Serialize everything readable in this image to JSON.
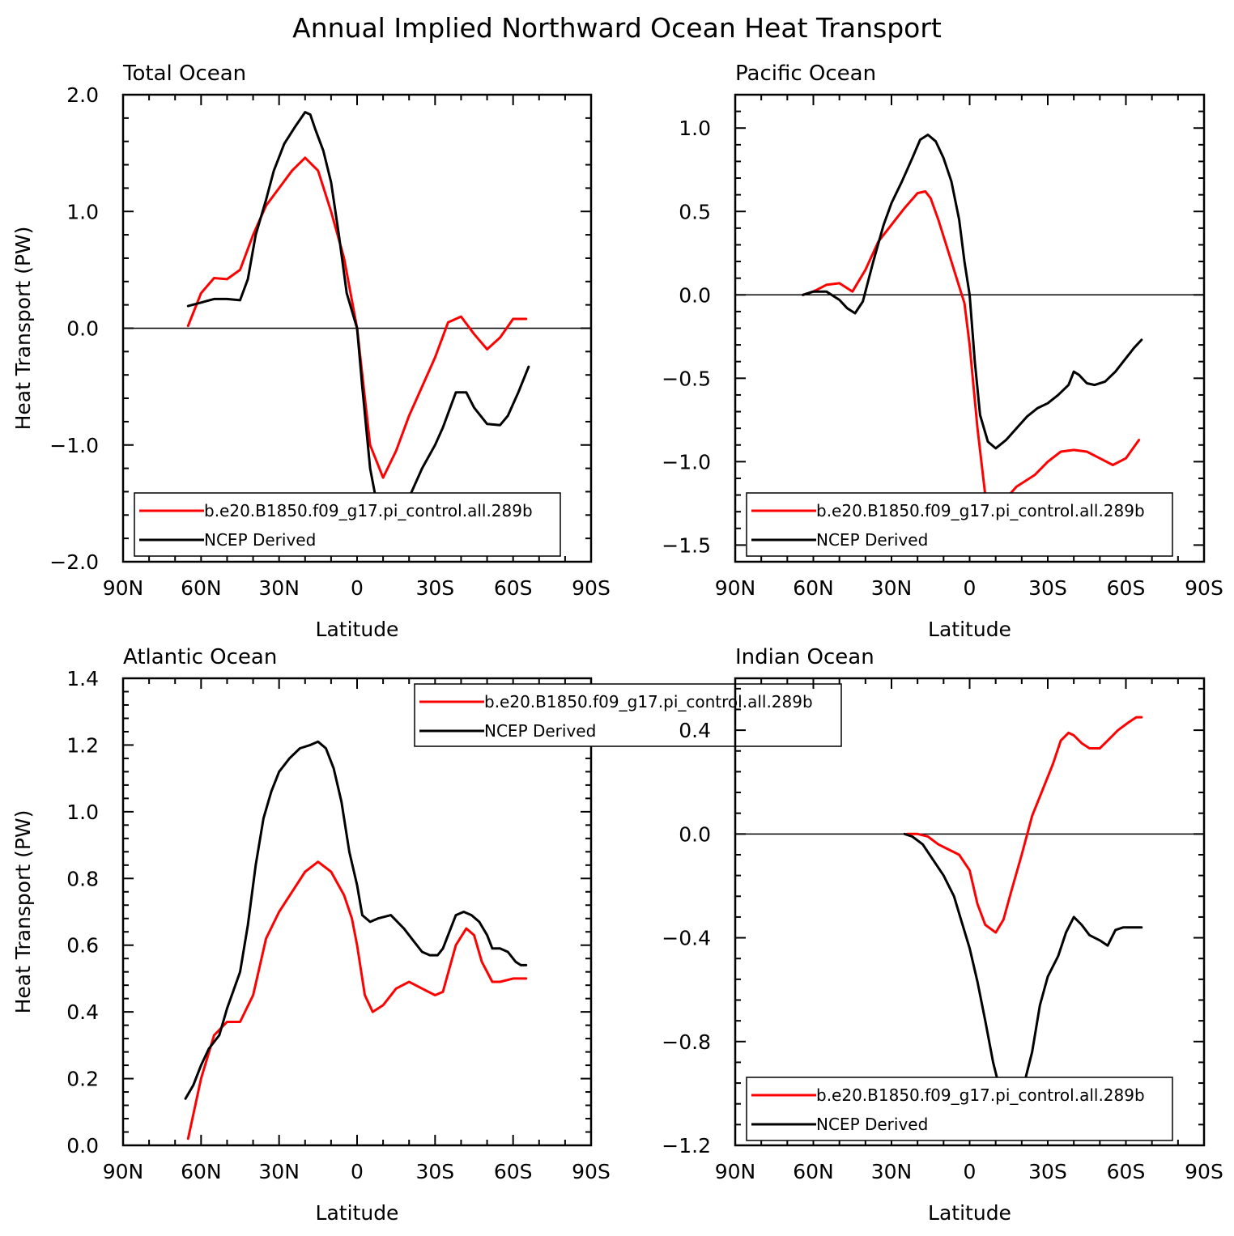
{
  "title": "Annual Implied Northward Ocean Heat Transport",
  "colors": {
    "model": "#ff0000",
    "obs": "#000000"
  },
  "chart_data": [
    {
      "type": "line",
      "title": "Total Ocean",
      "xlabel": "Latitude",
      "ylabel": "Heat Transport (PW)",
      "xlim": [
        90,
        -90
      ],
      "ylim": [
        -2.0,
        2.0
      ],
      "yticks": [
        -2.0,
        -1.0,
        0.0,
        1.0,
        2.0
      ],
      "ytick_labels": [
        "−2.0",
        "−1.0",
        "0.0",
        "1.0",
        "2.0"
      ],
      "xticks": [
        90,
        60,
        30,
        0,
        -30,
        -60,
        -90
      ],
      "xtick_labels": [
        "90N",
        "60N",
        "30N",
        "0",
        "30S",
        "60S",
        "90S"
      ],
      "zero_line": true,
      "legend_position": "bottom-left",
      "series": [
        {
          "name": "b.e20.B1850.f09_g17.pi_control.all.289b",
          "color": "#ff0000",
          "x": [
            65,
            60,
            55,
            50,
            45,
            40,
            35,
            30,
            25,
            20,
            15,
            10,
            5,
            0,
            -5,
            -10,
            -15,
            -20,
            -25,
            -30,
            -35,
            -40,
            -45,
            -50,
            -55,
            -60,
            -65
          ],
          "y": [
            0.02,
            0.3,
            0.43,
            0.42,
            0.5,
            0.8,
            1.05,
            1.2,
            1.35,
            1.46,
            1.35,
            1.0,
            0.6,
            0.0,
            -1.0,
            -1.28,
            -1.05,
            -0.75,
            -0.5,
            -0.25,
            0.05,
            0.1,
            -0.05,
            -0.18,
            -0.08,
            0.08,
            0.08
          ]
        },
        {
          "name": "NCEP Derived",
          "color": "#000000",
          "x": [
            65,
            60,
            55,
            50,
            45,
            42,
            39,
            35,
            32,
            28,
            24,
            20,
            18,
            16,
            13,
            10,
            7,
            4,
            2,
            0,
            -2,
            -5,
            -8,
            -10,
            -13,
            -16,
            -20,
            -25,
            -30,
            -33,
            -38,
            -42,
            -45,
            -50,
            -55,
            -58,
            -62,
            -66
          ],
          "y": [
            0.19,
            0.22,
            0.25,
            0.25,
            0.24,
            0.42,
            0.8,
            1.1,
            1.35,
            1.58,
            1.72,
            1.85,
            1.83,
            1.7,
            1.52,
            1.25,
            0.8,
            0.3,
            0.15,
            0.0,
            -0.5,
            -1.2,
            -1.55,
            -1.65,
            -1.68,
            -1.6,
            -1.45,
            -1.2,
            -1.0,
            -0.85,
            -0.55,
            -0.55,
            -0.68,
            -0.82,
            -0.83,
            -0.75,
            -0.55,
            -0.33
          ]
        }
      ]
    },
    {
      "type": "line",
      "title": "Pacific Ocean",
      "xlabel": "Latitude",
      "ylabel": "",
      "xlim": [
        90,
        -90
      ],
      "ylim": [
        -1.6,
        1.2
      ],
      "yticks": [
        -1.5,
        -1.0,
        -0.5,
        0.0,
        0.5,
        1.0
      ],
      "ytick_labels": [
        "−1.5",
        "−1.0",
        "−0.5",
        "0.0",
        "0.5",
        "1.0"
      ],
      "xticks": [
        90,
        60,
        30,
        0,
        -30,
        -60,
        -90
      ],
      "xtick_labels": [
        "90N",
        "60N",
        "30N",
        "0",
        "30S",
        "60S",
        "90S"
      ],
      "zero_line": true,
      "legend_position": "bottom-left",
      "series": [
        {
          "name": "b.e20.B1850.f09_g17.pi_control.all.289b",
          "color": "#ff0000",
          "x": [
            64,
            60,
            55,
            50,
            45,
            40,
            35,
            30,
            25,
            20,
            17,
            15,
            12,
            8,
            5,
            2,
            0,
            -3,
            -6,
            -9,
            -11,
            -14,
            -18,
            -25,
            -30,
            -35,
            -40,
            -45,
            -50,
            -55,
            -60,
            -65
          ],
          "y": [
            0.0,
            0.02,
            0.06,
            0.07,
            0.02,
            0.15,
            0.32,
            0.42,
            0.52,
            0.61,
            0.62,
            0.58,
            0.45,
            0.25,
            0.1,
            -0.05,
            -0.3,
            -0.8,
            -1.2,
            -1.32,
            -1.3,
            -1.22,
            -1.15,
            -1.08,
            -1.0,
            -0.94,
            -0.93,
            -0.94,
            -0.98,
            -1.02,
            -0.98,
            -0.87
          ]
        },
        {
          "name": "NCEP Derived",
          "color": "#000000",
          "x": [
            64,
            60,
            55,
            50,
            47,
            44,
            41,
            37,
            33,
            30,
            26,
            22,
            19,
            16,
            13,
            10,
            7,
            4,
            2,
            0,
            -2,
            -4,
            -7,
            -10,
            -14,
            -18,
            -22,
            -26,
            -30,
            -34,
            -38,
            -40,
            -42,
            -45,
            -48,
            -52,
            -56,
            -60,
            -63,
            -66
          ],
          "y": [
            0.0,
            0.02,
            0.02,
            -0.03,
            -0.08,
            -0.11,
            -0.04,
            0.2,
            0.42,
            0.55,
            0.68,
            0.82,
            0.93,
            0.96,
            0.92,
            0.82,
            0.68,
            0.45,
            0.2,
            0.0,
            -0.4,
            -0.72,
            -0.88,
            -0.92,
            -0.87,
            -0.8,
            -0.73,
            -0.68,
            -0.65,
            -0.6,
            -0.54,
            -0.46,
            -0.48,
            -0.53,
            -0.54,
            -0.52,
            -0.46,
            -0.38,
            -0.32,
            -0.27
          ]
        }
      ]
    },
    {
      "type": "line",
      "title": "Atlantic Ocean",
      "xlabel": "Latitude",
      "ylabel": "Heat Transport (PW)",
      "xlim": [
        90,
        -90
      ],
      "ylim": [
        0.0,
        1.4
      ],
      "yticks": [
        0.0,
        0.2,
        0.4,
        0.6,
        0.8,
        1.0,
        1.2,
        1.4
      ],
      "ytick_labels": [
        "0.0",
        "0.2",
        "0.4",
        "0.6",
        "0.8",
        "1.0",
        "1.2",
        "1.4"
      ],
      "xticks": [
        90,
        60,
        30,
        0,
        -30,
        -60,
        -90
      ],
      "xtick_labels": [
        "90N",
        "60N",
        "30N",
        "0",
        "30S",
        "60S",
        "90S"
      ],
      "zero_line": false,
      "legend_position": "top-center",
      "series": [
        {
          "name": "b.e20.B1850.f09_g17.pi_control.all.289b",
          "color": "#ff0000",
          "x": [
            65,
            60,
            55,
            50,
            45,
            40,
            35,
            30,
            25,
            20,
            15,
            10,
            5,
            2,
            0,
            -3,
            -6,
            -10,
            -15,
            -20,
            -25,
            -30,
            -33,
            -38,
            -42,
            -45,
            -48,
            -52,
            -55,
            -60,
            -65
          ],
          "y": [
            0.02,
            0.2,
            0.33,
            0.37,
            0.37,
            0.45,
            0.62,
            0.7,
            0.76,
            0.82,
            0.85,
            0.82,
            0.75,
            0.68,
            0.6,
            0.45,
            0.4,
            0.42,
            0.47,
            0.49,
            0.47,
            0.45,
            0.46,
            0.6,
            0.65,
            0.63,
            0.55,
            0.49,
            0.49,
            0.5,
            0.5
          ]
        },
        {
          "name": "NCEP Derived",
          "color": "#000000",
          "x": [
            66,
            63,
            60,
            57,
            53,
            50,
            45,
            42,
            39,
            36,
            33,
            30,
            26,
            22,
            18,
            15,
            12,
            9,
            6,
            3,
            0,
            -2,
            -5,
            -8,
            -13,
            -18,
            -22,
            -25,
            -28,
            -31,
            -33,
            -36,
            -38,
            -41,
            -44,
            -47,
            -50,
            -52,
            -55,
            -58,
            -61,
            -63,
            -65
          ],
          "y": [
            0.14,
            0.18,
            0.24,
            0.29,
            0.33,
            0.41,
            0.52,
            0.66,
            0.84,
            0.98,
            1.06,
            1.12,
            1.16,
            1.19,
            1.2,
            1.21,
            1.19,
            1.13,
            1.03,
            0.88,
            0.78,
            0.69,
            0.67,
            0.68,
            0.69,
            0.65,
            0.61,
            0.58,
            0.57,
            0.57,
            0.59,
            0.65,
            0.69,
            0.7,
            0.69,
            0.67,
            0.63,
            0.59,
            0.59,
            0.58,
            0.55,
            0.54,
            0.54
          ]
        }
      ]
    },
    {
      "type": "line",
      "title": "Indian Ocean",
      "xlabel": "Latitude",
      "ylabel": "",
      "xlim": [
        90,
        -90
      ],
      "ylim": [
        -1.2,
        0.6
      ],
      "yticks": [
        -1.2,
        -0.8,
        -0.4,
        0.0,
        0.4
      ],
      "ytick_labels": [
        "−1.2",
        "−0.8",
        "−0.4",
        "0.0",
        "0.4"
      ],
      "xticks": [
        90,
        60,
        30,
        0,
        -30,
        -60,
        -90
      ],
      "xtick_labels": [
        "90N",
        "60N",
        "30N",
        "0",
        "30S",
        "60S",
        "90S"
      ],
      "zero_line": true,
      "legend_position": "bottom-left",
      "series": [
        {
          "name": "b.e20.B1850.f09_g17.pi_control.all.289b",
          "color": "#ff0000",
          "x": [
            24,
            20,
            16,
            12,
            8,
            4,
            0,
            -3,
            -6,
            -10,
            -13,
            -16,
            -20,
            -24,
            -28,
            -32,
            -35,
            -38,
            -40,
            -43,
            -46,
            -50,
            -53,
            -57,
            -61,
            -64,
            -66
          ],
          "y": [
            0.0,
            0.0,
            -0.01,
            -0.04,
            -0.06,
            -0.08,
            -0.14,
            -0.27,
            -0.35,
            -0.38,
            -0.33,
            -0.22,
            -0.08,
            0.07,
            0.17,
            0.27,
            0.36,
            0.39,
            0.38,
            0.35,
            0.33,
            0.33,
            0.36,
            0.4,
            0.43,
            0.45,
            0.45
          ]
        },
        {
          "name": "NCEP Derived",
          "color": "#000000",
          "x": [
            25,
            22,
            18,
            14,
            10,
            6,
            3,
            0,
            -3,
            -6,
            -9,
            -12,
            -15,
            -18,
            -21,
            -24,
            -27,
            -30,
            -34,
            -37,
            -40,
            -43,
            -46,
            -50,
            -53,
            -56,
            -59,
            -62,
            -65,
            -66
          ],
          "y": [
            0.0,
            -0.01,
            -0.04,
            -0.1,
            -0.16,
            -0.24,
            -0.34,
            -0.44,
            -0.57,
            -0.72,
            -0.88,
            -1.0,
            -1.06,
            -1.02,
            -0.96,
            -0.84,
            -0.66,
            -0.55,
            -0.47,
            -0.38,
            -0.32,
            -0.35,
            -0.39,
            -0.41,
            -0.43,
            -0.37,
            -0.36,
            -0.36,
            -0.36,
            -0.36
          ]
        }
      ]
    }
  ]
}
